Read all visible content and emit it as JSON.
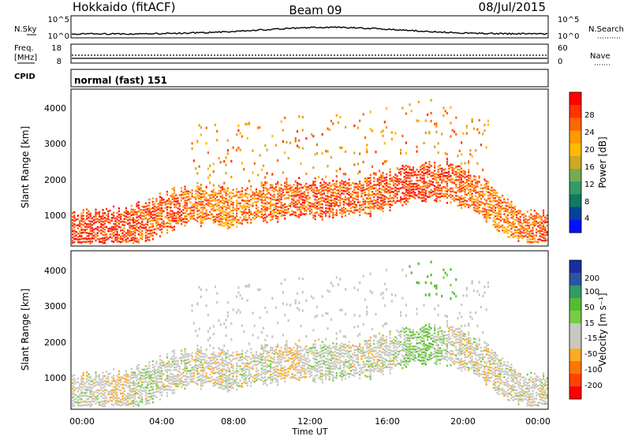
{
  "header": {
    "title": "Hokkaido (fitACF)",
    "beam": "Beam 09",
    "date": "08/Jul/2015"
  },
  "noise_panel": {
    "left_label": "N.Sky",
    "right_label": "N.Search",
    "left_ticks": [
      "10^5",
      "10^0"
    ],
    "right_ticks": [
      "10^5",
      "10^0"
    ]
  },
  "freq_panel": {
    "left_label_1": "Freq.",
    "left_label_2": "[MHz]",
    "right_label": "Nave",
    "left_ticks": [
      "18",
      "8"
    ],
    "right_ticks": [
      "60",
      "0"
    ]
  },
  "cpid_panel": {
    "label": "CPID",
    "text": "normal (fast) 151"
  },
  "power_panel": {
    "ylabel": "Slant Range [km]",
    "yticks": [
      "4000",
      "3000",
      "2000",
      "1000"
    ],
    "colorbar_label": "Power [dB]",
    "colorbar_ticks": [
      "28",
      "24",
      "20",
      "16",
      "12",
      "8",
      "4"
    ],
    "colorbar_colors": [
      "#ff0000",
      "#ff3300",
      "#ff6600",
      "#ff9900",
      "#ffbb00",
      "#ccaa22",
      "#77aa55",
      "#339966",
      "#117766",
      "#004499",
      "#0011ff"
    ]
  },
  "velocity_panel": {
    "ylabel": "Slant Range [km]",
    "yticks": [
      "4000",
      "3000",
      "2000",
      "1000"
    ],
    "colorbar_label": "Velocity [m s⁻¹]",
    "colorbar_ticks": [
      "200",
      "100",
      "50",
      "15",
      "-15",
      "-50",
      "-100",
      "-200"
    ],
    "colorbar_colors": [
      "#1a2ea0",
      "#2a55a0",
      "#339966",
      "#55bb33",
      "#77cc44",
      "#c8c8c0",
      "#c8c8c0",
      "#ffaa22",
      "#ff7700",
      "#ff4400",
      "#ff0000"
    ]
  },
  "xaxis": {
    "label": "Time UT",
    "ticks": [
      "00:00",
      "04:00",
      "08:00",
      "12:00",
      "16:00",
      "20:00",
      "00:00"
    ]
  },
  "chart_data": [
    {
      "type": "heatmap",
      "title": "",
      "xlabel": "Time UT",
      "ylabel": "Slant Range [km]",
      "xlim": [
        0,
        24
      ],
      "ylim": [
        180,
        4500
      ],
      "zlabel": "Power [dB]",
      "zlim": [
        0,
        30
      ],
      "series": [
        {
          "x": [
            0,
            1,
            2,
            3,
            4,
            5,
            6,
            7,
            8,
            9,
            10,
            11,
            12,
            13,
            14,
            15,
            16,
            17,
            18,
            19,
            20,
            21,
            22,
            23,
            24
          ],
          "y": [
            600,
            620,
            650,
            700,
            900,
            1150,
            1300,
            1250,
            1200,
            1300,
            1380,
            1420,
            1450,
            1450,
            1480,
            1550,
            1700,
            1900,
            1950,
            1900,
            1700,
            1350,
            900,
            650,
            550
          ],
          "z": [
            26,
            27,
            27,
            26,
            25,
            25,
            24,
            23,
            22,
            23,
            24,
            25,
            26,
            25,
            25,
            25,
            26,
            27,
            26,
            25,
            24,
            23,
            22,
            24,
            26
          ]
        }
      ]
    },
    {
      "type": "heatmap",
      "title": "",
      "xlabel": "Time UT",
      "ylabel": "Slant Range [km]",
      "xlim": [
        0,
        24
      ],
      "ylim": [
        180,
        4500
      ],
      "zlabel": "Velocity [m s⁻¹]",
      "zlim": [
        -250,
        250
      ],
      "series": [
        {
          "x": [
            0,
            1,
            2,
            3,
            4,
            5,
            6,
            7,
            8,
            9,
            10,
            11,
            12,
            13,
            14,
            15,
            16,
            17,
            18,
            19,
            20,
            21,
            22,
            23,
            24
          ],
          "y": [
            600,
            620,
            650,
            700,
            900,
            1150,
            1300,
            1250,
            1200,
            1300,
            1380,
            1420,
            1450,
            1450,
            1480,
            1550,
            1700,
            1900,
            1950,
            1900,
            1700,
            1350,
            900,
            650,
            550
          ],
          "z": [
            0,
            0,
            -10,
            0,
            5,
            0,
            0,
            -5,
            0,
            0,
            0,
            -20,
            0,
            5,
            0,
            0,
            0,
            20,
            30,
            0,
            0,
            -5,
            0,
            0,
            0
          ]
        }
      ]
    }
  ]
}
